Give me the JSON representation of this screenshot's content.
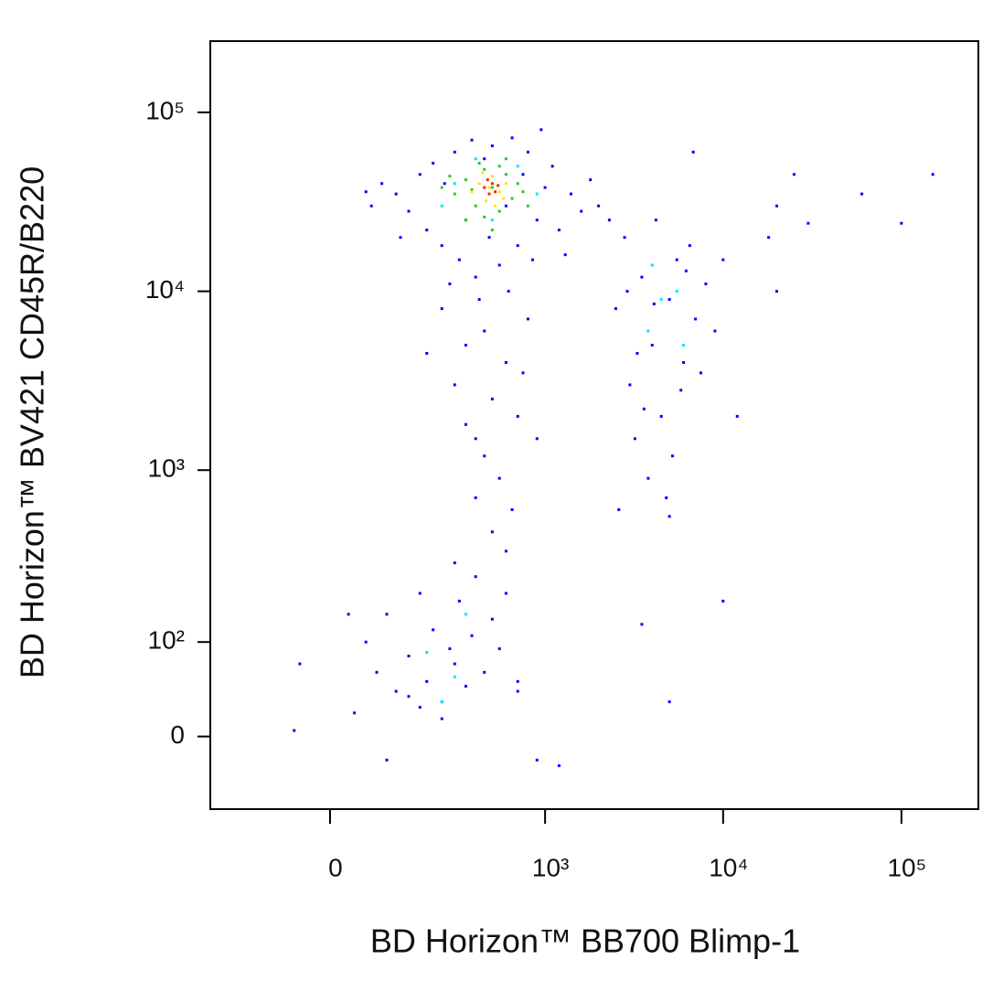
{
  "chart_data": {
    "type": "scatter",
    "scale": "biexponential",
    "xlabel": "BD Horizon™ BB700 Blimp-1",
    "ylabel": "BD Horizon™ BV421 CD45R/B220",
    "xlim": [
      -280,
      270000
    ],
    "ylim": [
      -70,
      250000
    ],
    "xticks": [
      0,
      {
        "value": 1000,
        "label": "10³"
      },
      {
        "value": 10000,
        "label": "10⁴"
      },
      {
        "value": 100000,
        "label": "10⁵"
      }
    ],
    "yticks": [
      0,
      {
        "value": 100,
        "label": "10²"
      },
      {
        "value": 1000,
        "label": "10³"
      },
      {
        "value": 10000,
        "label": "10⁴"
      },
      {
        "value": 100000,
        "label": "10⁵"
      }
    ],
    "series": [
      {
        "color": "#0000ff",
        "x": [
          120,
          150,
          180,
          200,
          220,
          250,
          260,
          300,
          320,
          350,
          380,
          400,
          450,
          480,
          500,
          550,
          600,
          650,
          700,
          750,
          800,
          900,
          1000,
          1100,
          1200,
          1400,
          1600,
          1800,
          2000,
          2300,
          90,
          70,
          60,
          130,
          280,
          420,
          620,
          850,
          1300,
          950,
          2500,
          3000,
          3500,
          4000,
          4500,
          5000,
          5500,
          6000,
          7000,
          8000,
          3200,
          2800,
          4200,
          6500,
          3800,
          5200,
          2600,
          4800,
          7500,
          9000,
          3300,
          4100,
          5800,
          2900,
          6200,
          3600,
          10000,
          12000,
          5000,
          6800,
          250,
          300,
          350,
          400,
          450,
          500,
          550,
          600,
          700,
          800,
          400,
          450,
          500,
          300,
          600,
          350,
          900,
          200,
          750,
          650,
          60,
          80,
          100,
          120,
          150,
          180,
          200,
          220,
          250,
          280,
          300,
          320,
          350,
          380,
          400,
          450,
          500,
          550,
          600,
          700,
          150,
          180,
          250,
          100,
          40,
          900,
          30,
          700,
          3500,
          10000,
          -50,
          -60,
          1200,
          5000,
          20000,
          25000,
          30000,
          60000,
          100000,
          150000,
          18000,
          20000
        ],
        "y": [
          35000,
          28000,
          45000,
          22000,
          52000,
          18000,
          40000,
          60000,
          15000,
          25000,
          70000,
          12000,
          55000,
          20000,
          65000,
          14000,
          30000,
          72000,
          18000,
          45000,
          60000,
          25000,
          38000,
          50000,
          22000,
          35000,
          28000,
          42000,
          30000,
          25000,
          40000,
          30000,
          36000,
          20000,
          11000,
          9000,
          10000,
          15000,
          16000,
          80000,
          8000,
          3000,
          12000,
          5000,
          2000,
          9000,
          15000,
          4000,
          7000,
          11000,
          1500,
          20000,
          25000,
          18000,
          900,
          1200,
          600,
          700,
          3500,
          6000,
          4500,
          8500,
          2800,
          10000,
          13000,
          2200,
          15000,
          2000,
          550,
          60000,
          8000,
          3000,
          5000,
          1500,
          6000,
          2500,
          900,
          4000,
          2000,
          7000,
          700,
          1200,
          450,
          300,
          350,
          1800,
          1500,
          4500,
          3500,
          600,
          100,
          60,
          150,
          40,
          80,
          200,
          50,
          120,
          30,
          90,
          70,
          180,
          45,
          110,
          250,
          60,
          140,
          90,
          200,
          50,
          35,
          25,
          15,
          -20,
          20,
          -20,
          150,
          40,
          130,
          180,
          70,
          5,
          -25,
          30,
          30000,
          45000,
          24000,
          35000,
          24000,
          45000,
          20000,
          10000
        ]
      },
      {
        "color": "#00e5ff",
        "x": [
          300,
          500,
          700,
          400,
          250,
          900,
          4500,
          3800,
          5500,
          6000,
          200,
          300,
          250,
          350,
          4000
        ],
        "y": [
          40000,
          25000,
          50000,
          55000,
          30000,
          35000,
          9000,
          6000,
          10000,
          5000,
          85,
          55,
          30,
          150,
          14000
        ]
      },
      {
        "color": "#22cc22",
        "x": [
          300,
          350,
          400,
          450,
          500,
          550,
          600,
          650,
          700,
          350,
          250,
          420,
          800,
          500,
          600,
          280,
          750,
          450,
          380,
          550
        ],
        "y": [
          35000,
          42000,
          30000,
          48000,
          38000,
          28000,
          45000,
          33000,
          40000,
          25000,
          38000,
          52000,
          30000,
          22000,
          55000,
          44000,
          36000,
          26000,
          37000,
          50000
        ]
      },
      {
        "color": "#ffe600",
        "x": [
          380,
          420,
          460,
          500,
          550,
          600,
          480,
          520,
          440,
          580
        ],
        "y": [
          36000,
          40000,
          32000,
          44000,
          36000,
          40000,
          38000,
          30000,
          46000,
          33000
        ]
      },
      {
        "color": "#ff2200",
        "x": [
          450,
          480,
          500,
          520,
          470,
          540
        ],
        "y": [
          38000,
          35000,
          40000,
          36000,
          42000,
          39000
        ]
      }
    ]
  }
}
